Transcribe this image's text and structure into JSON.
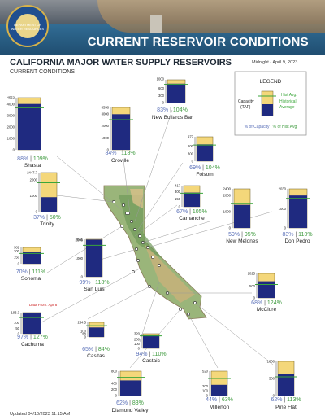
{
  "header": {
    "banner_title": "CURRENT RESERVOIR CONDITIONS",
    "seal_text": "DEPARTMENT OF WATER RESOURCES",
    "title": "CALIFORNIA MAJOR WATER SUPPLY RESERVOIRS",
    "subtitle": "CURRENT CONDITIONS",
    "date_note": "Midnight - April 9, 2023"
  },
  "footer": {
    "updated": "Updated 04/10/2023 11:15 AM"
  },
  "legend": {
    "title": "LEGEND",
    "capacity_label": "Capacity",
    "capacity_unit": "(TAF)",
    "hist_avg": "Hist Avg.",
    "historical": "Historical",
    "average": "Average",
    "pct_capacity": "% of Capacity",
    "separator": "|",
    "pct_hist_avg": "% of Hist Avg"
  },
  "colors": {
    "capacity_fill": "#f4d77a",
    "storage_fill": "#1f2a80",
    "hist_avg_line": "#3aa63a",
    "pct_capacity_text": "#5a70b8",
    "pct_hist_text": "#3e9a3e",
    "data_from_note": "#cc2222"
  },
  "chart_data": {
    "type": "bar",
    "title": "CALIFORNIA MAJOR WATER SUPPLY RESERVOIRS",
    "units": "TAF",
    "reservoirs": [
      {
        "name": "Shasta",
        "capacity": 4552,
        "ticks": [
          "4552",
          "4000",
          "3000",
          "2000",
          "1000",
          "0"
        ],
        "pct_capacity": 88,
        "pct_hist_avg": 109
      },
      {
        "name": "Oroville",
        "capacity": 3538,
        "ticks": [
          "3538",
          "3000",
          "2000",
          "1000",
          "0"
        ],
        "pct_capacity": 84,
        "pct_hist_avg": 118
      },
      {
        "name": "New Bullards Bar",
        "capacity": 966,
        "ticks": [
          "1000",
          "600",
          "300",
          "0"
        ],
        "pct_capacity": 83,
        "pct_hist_avg": 104
      },
      {
        "name": "Folsom",
        "capacity": 977,
        "ticks": [
          "977",
          "600",
          "300",
          "0"
        ],
        "pct_capacity": 69,
        "pct_hist_avg": 104
      },
      {
        "name": "Trinity",
        "capacity": 2447.7,
        "ticks": [
          "2447.7",
          "2000",
          "1000",
          "0"
        ],
        "pct_capacity": 37,
        "pct_hist_avg": 50
      },
      {
        "name": "Camanche",
        "capacity": 417,
        "ticks": [
          "417",
          "300",
          "150",
          "0"
        ],
        "pct_capacity": 67,
        "pct_hist_avg": 105
      },
      {
        "name": "New Melones",
        "capacity": 2400,
        "ticks": [
          "2400",
          "2000",
          "1000",
          "0"
        ],
        "pct_capacity": 59,
        "pct_hist_avg": 95
      },
      {
        "name": "Don Pedro",
        "capacity": 2030,
        "ticks": [
          "2030",
          "1000",
          "0"
        ],
        "pct_capacity": 83,
        "pct_hist_avg": 110
      },
      {
        "name": "Sonoma",
        "capacity": 381,
        "ticks": [
          "381",
          "300",
          "150",
          "0"
        ],
        "pct_capacity": 70,
        "pct_hist_avg": 111
      },
      {
        "name": "San Luis",
        "capacity": 2041,
        "ticks": [
          "2041",
          "2000",
          "1000",
          "0"
        ],
        "pct_capacity": 99,
        "pct_hist_avg": 118
      },
      {
        "name": "McClure",
        "capacity": 1025,
        "ticks": [
          "1025",
          "500",
          "0"
        ],
        "pct_capacity": 68,
        "pct_hist_avg": 124
      },
      {
        "name": "Cachuma",
        "capacity": 193.3,
        "ticks": [
          "193.3",
          "100",
          "50",
          "0"
        ],
        "pct_capacity": 97,
        "pct_hist_avg": 127,
        "note": "Data From: Apr 8"
      },
      {
        "name": "Casitas",
        "capacity": 254.5,
        "ticks": [
          "254.5",
          "100",
          "50",
          "0"
        ],
        "pct_capacity": 65,
        "pct_hist_avg": 84
      },
      {
        "name": "Castaic",
        "capacity": 320,
        "ticks": [
          "320",
          "200",
          "100",
          "0"
        ],
        "pct_capacity": 94,
        "pct_hist_avg": 110
      },
      {
        "name": "Diamond Valley",
        "capacity": 800,
        "ticks": [
          "800",
          "400",
          "200",
          "0"
        ],
        "pct_capacity": 62,
        "pct_hist_avg": 83
      },
      {
        "name": "Millerton",
        "capacity": 520,
        "ticks": [
          "520",
          "200",
          "100",
          "0"
        ],
        "pct_capacity": 44,
        "pct_hist_avg": 63
      },
      {
        "name": "Pine Flat",
        "capacity": 1000,
        "ticks": [
          "1000",
          "500",
          "0"
        ],
        "pct_capacity": 62,
        "pct_hist_avg": 113
      }
    ]
  }
}
